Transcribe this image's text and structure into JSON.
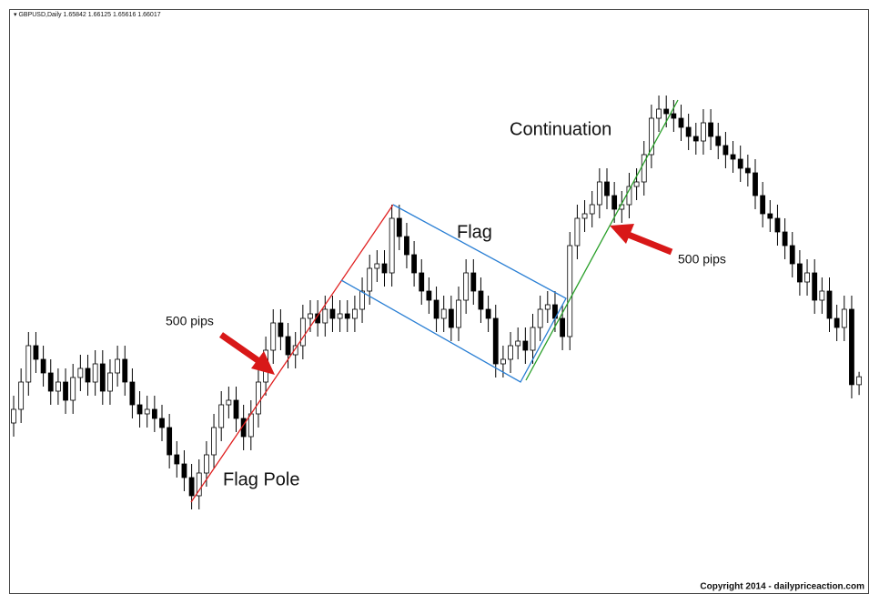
{
  "chart_data": {
    "type": "candlestick",
    "symbol": "GBPUSD,Daily",
    "annotations": {
      "flag_pole": "Flag Pole",
      "flag": "Flag",
      "continuation": "Continuation",
      "pips_left": "500 pips",
      "pips_right": "500 pips"
    },
    "copyright": "Copyright 2014 - dailypriceaction.com",
    "up_color": "#ffffff",
    "down_color": "#000000",
    "ylim": [
      1.6124,
      1.741
    ],
    "open": [
      1.65,
      1.653,
      1.659,
      1.667,
      1.664,
      1.661,
      1.657,
      1.659,
      1.655,
      1.66,
      1.662,
      1.659,
      1.663,
      1.657,
      1.661,
      1.664,
      1.659,
      1.654,
      1.652,
      1.653,
      1.651,
      1.649,
      1.643,
      1.641,
      1.638,
      1.634,
      1.639,
      1.643,
      1.649,
      1.654,
      1.655,
      1.651,
      1.647,
      1.652,
      1.659,
      1.666,
      1.672,
      1.669,
      1.665,
      1.667,
      1.673,
      1.674,
      1.672,
      1.675,
      1.673,
      1.674,
      1.673,
      1.675,
      1.679,
      1.684,
      1.685,
      1.683,
      1.695,
      1.691,
      1.687,
      1.683,
      1.679,
      1.677,
      1.673,
      1.675,
      1.671,
      1.677,
      1.683,
      1.679,
      1.675,
      1.673,
      1.663,
      1.664,
      1.667,
      1.668,
      1.666,
      1.671,
      1.675,
      1.676,
      1.673,
      1.669,
      1.689,
      1.695,
      1.696,
      1.698,
      1.703,
      1.7,
      1.697,
      1.698,
      1.702,
      1.703,
      1.709,
      1.717,
      1.719,
      1.718,
      1.717,
      1.715,
      1.713,
      1.712,
      1.716,
      1.713,
      1.711,
      1.709,
      1.708,
      1.706,
      1.705,
      1.7,
      1.696,
      1.695,
      1.692,
      1.689,
      1.685,
      1.681,
      1.683,
      1.677,
      1.679,
      1.673,
      1.671,
      1.675,
      1.65842
    ],
    "high": [
      1.656,
      1.662,
      1.67,
      1.67,
      1.667,
      1.664,
      1.662,
      1.662,
      1.663,
      1.665,
      1.665,
      1.666,
      1.666,
      1.664,
      1.667,
      1.667,
      1.662,
      1.657,
      1.656,
      1.656,
      1.654,
      1.652,
      1.646,
      1.644,
      1.641,
      1.642,
      1.646,
      1.652,
      1.657,
      1.658,
      1.658,
      1.654,
      1.655,
      1.662,
      1.669,
      1.675,
      1.675,
      1.672,
      1.67,
      1.676,
      1.677,
      1.677,
      1.678,
      1.678,
      1.677,
      1.677,
      1.678,
      1.682,
      1.687,
      1.688,
      1.688,
      1.698,
      1.698,
      1.694,
      1.69,
      1.686,
      1.682,
      1.68,
      1.678,
      1.678,
      1.68,
      1.686,
      1.686,
      1.682,
      1.678,
      1.676,
      1.667,
      1.67,
      1.671,
      1.671,
      1.674,
      1.678,
      1.679,
      1.679,
      1.676,
      1.692,
      1.698,
      1.699,
      1.701,
      1.706,
      1.706,
      1.703,
      1.701,
      1.705,
      1.706,
      1.712,
      1.72,
      1.722,
      1.722,
      1.721,
      1.72,
      1.718,
      1.716,
      1.719,
      1.719,
      1.716,
      1.714,
      1.712,
      1.711,
      1.709,
      1.708,
      1.703,
      1.699,
      1.698,
      1.695,
      1.692,
      1.688,
      1.686,
      1.686,
      1.682,
      1.682,
      1.676,
      1.678,
      1.678,
      1.66125
    ],
    "low": [
      1.647,
      1.65,
      1.656,
      1.661,
      1.658,
      1.654,
      1.654,
      1.652,
      1.652,
      1.657,
      1.656,
      1.656,
      1.654,
      1.654,
      1.658,
      1.656,
      1.651,
      1.649,
      1.649,
      1.648,
      1.646,
      1.64,
      1.638,
      1.635,
      1.631,
      1.631,
      1.636,
      1.64,
      1.646,
      1.651,
      1.648,
      1.644,
      1.644,
      1.649,
      1.656,
      1.663,
      1.666,
      1.662,
      1.662,
      1.664,
      1.67,
      1.669,
      1.669,
      1.67,
      1.67,
      1.67,
      1.67,
      1.672,
      1.676,
      1.681,
      1.68,
      1.68,
      1.688,
      1.684,
      1.68,
      1.676,
      1.674,
      1.67,
      1.67,
      1.668,
      1.668,
      1.674,
      1.676,
      1.672,
      1.67,
      1.66,
      1.66,
      1.661,
      1.664,
      1.663,
      1.663,
      1.668,
      1.672,
      1.67,
      1.666,
      1.666,
      1.686,
      1.692,
      1.693,
      1.695,
      1.697,
      1.694,
      1.694,
      1.695,
      1.699,
      1.7,
      1.706,
      1.714,
      1.715,
      1.714,
      1.712,
      1.71,
      1.709,
      1.709,
      1.71,
      1.708,
      1.706,
      1.705,
      1.703,
      1.702,
      1.697,
      1.693,
      1.692,
      1.689,
      1.686,
      1.682,
      1.678,
      1.678,
      1.674,
      1.674,
      1.67,
      1.668,
      1.668,
      1.6554,
      1.65616
    ],
    "close": [
      1.653,
      1.659,
      1.667,
      1.664,
      1.661,
      1.657,
      1.659,
      1.655,
      1.66,
      1.662,
      1.659,
      1.663,
      1.657,
      1.661,
      1.664,
      1.659,
      1.654,
      1.652,
      1.653,
      1.651,
      1.649,
      1.643,
      1.641,
      1.638,
      1.634,
      1.639,
      1.643,
      1.649,
      1.654,
      1.655,
      1.651,
      1.647,
      1.652,
      1.659,
      1.666,
      1.672,
      1.669,
      1.665,
      1.667,
      1.673,
      1.674,
      1.672,
      1.675,
      1.673,
      1.674,
      1.673,
      1.675,
      1.679,
      1.684,
      1.685,
      1.683,
      1.695,
      1.691,
      1.687,
      1.683,
      1.679,
      1.677,
      1.673,
      1.675,
      1.671,
      1.677,
      1.683,
      1.679,
      1.675,
      1.673,
      1.663,
      1.664,
      1.667,
      1.668,
      1.666,
      1.671,
      1.675,
      1.676,
      1.673,
      1.669,
      1.689,
      1.695,
      1.696,
      1.698,
      1.703,
      1.7,
      1.697,
      1.698,
      1.702,
      1.703,
      1.709,
      1.717,
      1.719,
      1.718,
      1.717,
      1.715,
      1.713,
      1.712,
      1.716,
      1.713,
      1.711,
      1.709,
      1.708,
      1.706,
      1.705,
      1.7,
      1.696,
      1.695,
      1.692,
      1.689,
      1.685,
      1.681,
      1.683,
      1.677,
      1.679,
      1.673,
      1.671,
      1.675,
      1.65842,
      1.66017
    ]
  }
}
